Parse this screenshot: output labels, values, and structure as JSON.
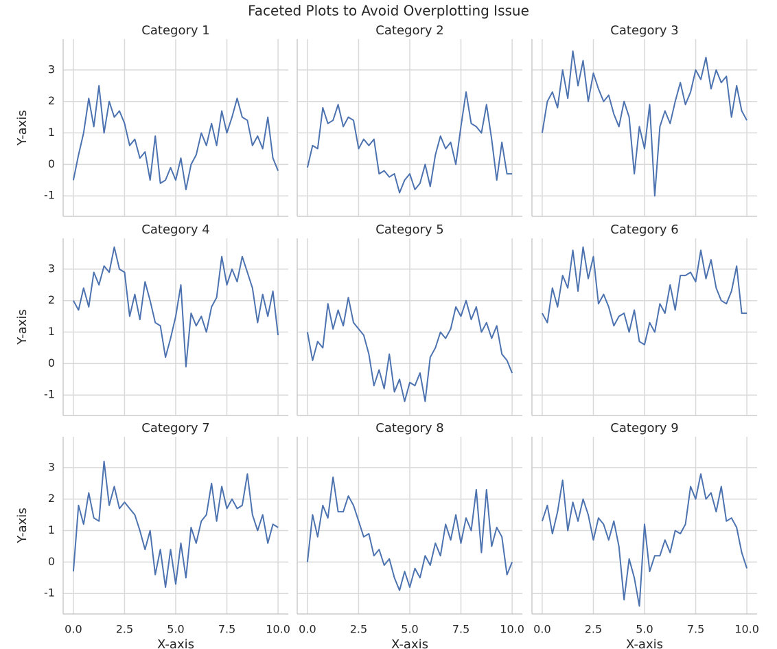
{
  "title": "Faceted Plots to Avoid Overplotting Issue",
  "chart_data": [
    {
      "type": "line",
      "title": "Category 1",
      "ylabel": "Y-axis",
      "grid": true,
      "xlim": [
        -0.5,
        10.5
      ],
      "ylim": [
        -1.65,
        3.98
      ],
      "xticks": [
        0,
        2.5,
        5,
        7.5,
        10
      ],
      "yticks": [
        -1,
        0,
        1,
        2,
        3
      ],
      "x": [
        0,
        0.25,
        0.5,
        0.75,
        1,
        1.25,
        1.5,
        1.75,
        2,
        2.25,
        2.5,
        2.75,
        3,
        3.25,
        3.5,
        3.75,
        4,
        4.25,
        4.5,
        4.75,
        5,
        5.25,
        5.5,
        5.75,
        6,
        6.25,
        6.5,
        6.75,
        7,
        7.25,
        7.5,
        7.75,
        8,
        8.25,
        8.5,
        8.75,
        9,
        9.25,
        9.5,
        9.75,
        10
      ],
      "series": [
        {
          "color": "#4c72b0",
          "values": [
            -0.5,
            0.3,
            1.0,
            2.1,
            1.2,
            2.5,
            1.0,
            2.0,
            1.5,
            1.7,
            1.3,
            0.6,
            0.8,
            0.2,
            0.4,
            -0.5,
            0.9,
            -0.6,
            -0.5,
            -0.1,
            -0.5,
            0.2,
            -0.8,
            0.0,
            0.3,
            1.0,
            0.6,
            1.3,
            0.6,
            1.7,
            1.0,
            1.5,
            2.1,
            1.5,
            1.4,
            0.6,
            0.9,
            0.5,
            1.5,
            0.2,
            -0.2
          ]
        }
      ]
    },
    {
      "type": "line",
      "title": "Category 2",
      "grid": true,
      "xlim": [
        -0.5,
        10.5
      ],
      "ylim": [
        -1.65,
        3.98
      ],
      "xticks": [
        0,
        2.5,
        5,
        7.5,
        10
      ],
      "yticks": [
        -1,
        0,
        1,
        2,
        3
      ],
      "x": [
        0,
        0.25,
        0.5,
        0.75,
        1,
        1.25,
        1.5,
        1.75,
        2,
        2.25,
        2.5,
        2.75,
        3,
        3.25,
        3.5,
        3.75,
        4,
        4.25,
        4.5,
        4.75,
        5,
        5.25,
        5.5,
        5.75,
        6,
        6.25,
        6.5,
        6.75,
        7,
        7.25,
        7.5,
        7.75,
        8,
        8.25,
        8.5,
        8.75,
        9,
        9.25,
        9.5,
        9.75,
        10
      ],
      "series": [
        {
          "color": "#4c72b0",
          "values": [
            -0.1,
            0.6,
            0.5,
            1.8,
            1.3,
            1.4,
            1.9,
            1.2,
            1.5,
            1.4,
            0.5,
            0.8,
            0.6,
            0.8,
            -0.3,
            -0.2,
            -0.4,
            -0.3,
            -0.9,
            -0.5,
            -0.3,
            -0.8,
            -0.6,
            0.0,
            -0.7,
            0.3,
            0.9,
            0.5,
            0.7,
            0.0,
            1.2,
            2.3,
            1.3,
            1.2,
            1.0,
            1.9,
            0.8,
            -0.5,
            0.7,
            -0.3,
            -0.3
          ]
        }
      ]
    },
    {
      "type": "line",
      "title": "Category 3",
      "grid": true,
      "xlim": [
        -0.5,
        10.5
      ],
      "ylim": [
        -1.65,
        3.98
      ],
      "xticks": [
        0,
        2.5,
        5,
        7.5,
        10
      ],
      "yticks": [
        -1,
        0,
        1,
        2,
        3
      ],
      "x": [
        0,
        0.25,
        0.5,
        0.75,
        1,
        1.25,
        1.5,
        1.75,
        2,
        2.25,
        2.5,
        2.75,
        3,
        3.25,
        3.5,
        3.75,
        4,
        4.25,
        4.5,
        4.75,
        5,
        5.25,
        5.5,
        5.75,
        6,
        6.25,
        6.5,
        6.75,
        7,
        7.25,
        7.5,
        7.75,
        8,
        8.25,
        8.5,
        8.75,
        9,
        9.25,
        9.5,
        9.75,
        10
      ],
      "series": [
        {
          "color": "#4c72b0",
          "values": [
            1.0,
            2.0,
            2.3,
            1.8,
            3.0,
            2.1,
            3.6,
            2.5,
            3.3,
            2.0,
            2.9,
            2.4,
            2.0,
            2.2,
            1.6,
            1.2,
            2.0,
            1.5,
            -0.3,
            1.2,
            0.5,
            1.9,
            -1.0,
            1.2,
            1.7,
            1.3,
            2.0,
            2.6,
            1.9,
            2.3,
            3.0,
            2.7,
            3.4,
            2.4,
            3.0,
            2.6,
            2.8,
            1.5,
            2.5,
            1.7,
            1.4
          ]
        }
      ]
    },
    {
      "type": "line",
      "title": "Category 4",
      "ylabel": "Y-axis",
      "grid": true,
      "xlim": [
        -0.5,
        10.5
      ],
      "ylim": [
        -1.65,
        3.98
      ],
      "xticks": [
        0,
        2.5,
        5,
        7.5,
        10
      ],
      "yticks": [
        -1,
        0,
        1,
        2,
        3
      ],
      "x": [
        0,
        0.25,
        0.5,
        0.75,
        1,
        1.25,
        1.5,
        1.75,
        2,
        2.25,
        2.5,
        2.75,
        3,
        3.25,
        3.5,
        3.75,
        4,
        4.25,
        4.5,
        4.75,
        5,
        5.25,
        5.5,
        5.75,
        6,
        6.25,
        6.5,
        6.75,
        7,
        7.25,
        7.5,
        7.75,
        8,
        8.25,
        8.5,
        8.75,
        9,
        9.25,
        9.5,
        9.75,
        10
      ],
      "series": [
        {
          "color": "#4c72b0",
          "values": [
            2.0,
            1.7,
            2.4,
            1.8,
            2.9,
            2.5,
            3.1,
            2.9,
            3.7,
            3.0,
            2.9,
            1.5,
            2.2,
            1.4,
            2.6,
            2.0,
            1.3,
            1.2,
            0.2,
            0.8,
            1.5,
            2.5,
            -0.1,
            1.6,
            1.2,
            1.5,
            1.0,
            1.8,
            2.1,
            3.4,
            2.5,
            3.0,
            2.6,
            3.4,
            2.9,
            2.4,
            1.3,
            2.2,
            1.5,
            2.3,
            0.9
          ]
        }
      ]
    },
    {
      "type": "line",
      "title": "Category 5",
      "grid": true,
      "xlim": [
        -0.5,
        10.5
      ],
      "ylim": [
        -1.65,
        3.98
      ],
      "xticks": [
        0,
        2.5,
        5,
        7.5,
        10
      ],
      "yticks": [
        -1,
        0,
        1,
        2,
        3
      ],
      "x": [
        0,
        0.25,
        0.5,
        0.75,
        1,
        1.25,
        1.5,
        1.75,
        2,
        2.25,
        2.5,
        2.75,
        3,
        3.25,
        3.5,
        3.75,
        4,
        4.25,
        4.5,
        4.75,
        5,
        5.25,
        5.5,
        5.75,
        6,
        6.25,
        6.5,
        6.75,
        7,
        7.25,
        7.5,
        7.75,
        8,
        8.25,
        8.5,
        8.75,
        9,
        9.25,
        9.5,
        9.75,
        10
      ],
      "series": [
        {
          "color": "#4c72b0",
          "values": [
            1.0,
            0.1,
            0.7,
            0.5,
            1.9,
            1.1,
            1.7,
            1.2,
            2.1,
            1.3,
            1.1,
            0.9,
            0.3,
            -0.7,
            -0.2,
            -0.8,
            0.3,
            -0.9,
            -0.5,
            -1.2,
            -0.6,
            -0.7,
            -0.3,
            -1.2,
            0.2,
            0.5,
            1.0,
            0.8,
            1.1,
            1.8,
            1.5,
            2.0,
            1.4,
            1.8,
            1.0,
            1.3,
            0.8,
            1.2,
            0.3,
            0.1,
            -0.3
          ]
        }
      ]
    },
    {
      "type": "line",
      "title": "Category 6",
      "grid": true,
      "xlim": [
        -0.5,
        10.5
      ],
      "ylim": [
        -1.65,
        3.98
      ],
      "xticks": [
        0,
        2.5,
        5,
        7.5,
        10
      ],
      "yticks": [
        -1,
        0,
        1,
        2,
        3
      ],
      "x": [
        0,
        0.25,
        0.5,
        0.75,
        1,
        1.25,
        1.5,
        1.75,
        2,
        2.25,
        2.5,
        2.75,
        3,
        3.25,
        3.5,
        3.75,
        4,
        4.25,
        4.5,
        4.75,
        5,
        5.25,
        5.5,
        5.75,
        6,
        6.25,
        6.5,
        6.75,
        7,
        7.25,
        7.5,
        7.75,
        8,
        8.25,
        8.5,
        8.75,
        9,
        9.25,
        9.5,
        9.75,
        10
      ],
      "series": [
        {
          "color": "#4c72b0",
          "values": [
            1.6,
            1.3,
            2.4,
            1.8,
            2.8,
            2.4,
            3.6,
            2.3,
            3.7,
            2.7,
            3.4,
            1.9,
            2.2,
            1.8,
            1.2,
            1.5,
            1.6,
            1.0,
            1.7,
            0.7,
            0.6,
            1.3,
            1.0,
            1.9,
            1.6,
            2.5,
            1.7,
            2.8,
            2.8,
            2.9,
            2.6,
            3.6,
            2.7,
            3.3,
            2.4,
            2.0,
            1.9,
            2.3,
            3.1,
            1.6,
            1.6
          ]
        }
      ]
    },
    {
      "type": "line",
      "title": "Category 7",
      "xlabel": "X-axis",
      "ylabel": "Y-axis",
      "grid": true,
      "xlim": [
        -0.5,
        10.5
      ],
      "ylim": [
        -1.65,
        3.98
      ],
      "xticks": [
        {
          "value": 0,
          "label": "0.0"
        },
        2.5,
        {
          "value": 5,
          "label": "5.0"
        },
        7.5,
        {
          "value": 10,
          "label": "10.0"
        }
      ],
      "yticks": [
        -1,
        0,
        1,
        2,
        3
      ],
      "x": [
        0,
        0.25,
        0.5,
        0.75,
        1,
        1.25,
        1.5,
        1.75,
        2,
        2.25,
        2.5,
        2.75,
        3,
        3.25,
        3.5,
        3.75,
        4,
        4.25,
        4.5,
        4.75,
        5,
        5.25,
        5.5,
        5.75,
        6,
        6.25,
        6.5,
        6.75,
        7,
        7.25,
        7.5,
        7.75,
        8,
        8.25,
        8.5,
        8.75,
        9,
        9.25,
        9.5,
        9.75,
        10
      ],
      "series": [
        {
          "color": "#4c72b0",
          "values": [
            -0.3,
            1.8,
            1.2,
            2.2,
            1.4,
            1.3,
            3.2,
            1.8,
            2.4,
            1.7,
            1.9,
            1.7,
            1.5,
            1.0,
            0.4,
            1.0,
            -0.4,
            0.4,
            -0.8,
            0.4,
            -0.7,
            0.6,
            -0.5,
            1.1,
            0.6,
            1.3,
            1.5,
            2.5,
            1.3,
            2.4,
            1.7,
            2.0,
            1.7,
            1.8,
            2.8,
            1.5,
            1.0,
            1.5,
            0.6,
            1.2,
            1.1
          ]
        }
      ]
    },
    {
      "type": "line",
      "title": "Category 8",
      "xlabel": "X-axis",
      "grid": true,
      "xlim": [
        -0.5,
        10.5
      ],
      "ylim": [
        -1.65,
        3.98
      ],
      "xticks": [
        {
          "value": 0,
          "label": "0.0"
        },
        2.5,
        {
          "value": 5,
          "label": "5.0"
        },
        7.5,
        {
          "value": 10,
          "label": "10.0"
        }
      ],
      "yticks": [
        -1,
        0,
        1,
        2,
        3
      ],
      "x": [
        0,
        0.25,
        0.5,
        0.75,
        1,
        1.25,
        1.5,
        1.75,
        2,
        2.25,
        2.5,
        2.75,
        3,
        3.25,
        3.5,
        3.75,
        4,
        4.25,
        4.5,
        4.75,
        5,
        5.25,
        5.5,
        5.75,
        6,
        6.25,
        6.5,
        6.75,
        7,
        7.25,
        7.5,
        7.75,
        8,
        8.25,
        8.5,
        8.75,
        9,
        9.25,
        9.5,
        9.75,
        10
      ],
      "series": [
        {
          "color": "#4c72b0",
          "values": [
            0.0,
            1.5,
            0.8,
            1.8,
            1.4,
            2.7,
            1.6,
            1.6,
            2.1,
            1.8,
            1.3,
            0.8,
            0.9,
            0.2,
            0.4,
            -0.1,
            0.1,
            -0.5,
            -0.9,
            -0.3,
            -0.8,
            -0.2,
            -0.5,
            0.2,
            -0.1,
            0.6,
            0.2,
            1.2,
            0.7,
            1.5,
            0.6,
            1.4,
            1.0,
            2.3,
            0.3,
            2.3,
            0.5,
            1.1,
            0.8,
            -0.4,
            0.0
          ]
        }
      ]
    },
    {
      "type": "line",
      "title": "Category 9",
      "xlabel": "X-axis",
      "grid": true,
      "xlim": [
        -0.5,
        10.5
      ],
      "ylim": [
        -1.65,
        3.98
      ],
      "xticks": [
        {
          "value": 0,
          "label": "0.0"
        },
        2.5,
        {
          "value": 5,
          "label": "5.0"
        },
        7.5,
        {
          "value": 10,
          "label": "10.0"
        }
      ],
      "yticks": [
        -1,
        0,
        1,
        2,
        3
      ],
      "x": [
        0,
        0.25,
        0.5,
        0.75,
        1,
        1.25,
        1.5,
        1.75,
        2,
        2.25,
        2.5,
        2.75,
        3,
        3.25,
        3.5,
        3.75,
        4,
        4.25,
        4.5,
        4.75,
        5,
        5.25,
        5.5,
        5.75,
        6,
        6.25,
        6.5,
        6.75,
        7,
        7.25,
        7.5,
        7.75,
        8,
        8.25,
        8.5,
        8.75,
        9,
        9.25,
        9.5,
        9.75,
        10
      ],
      "series": [
        {
          "color": "#4c72b0",
          "values": [
            1.3,
            1.8,
            0.9,
            1.6,
            2.6,
            1.0,
            1.9,
            1.3,
            2.0,
            1.5,
            0.7,
            1.4,
            1.2,
            0.7,
            1.3,
            0.5,
            -1.2,
            0.1,
            -0.5,
            -1.4,
            1.2,
            -0.3,
            0.2,
            0.2,
            0.7,
            0.3,
            1.0,
            0.9,
            1.2,
            2.4,
            2.0,
            2.8,
            2.0,
            2.2,
            1.6,
            2.4,
            1.3,
            1.4,
            1.1,
            0.3,
            -0.2
          ]
        }
      ]
    }
  ]
}
